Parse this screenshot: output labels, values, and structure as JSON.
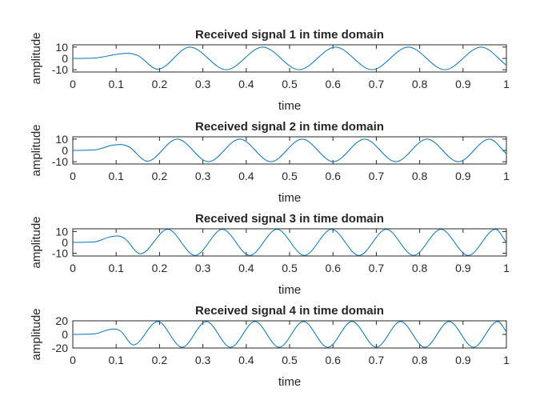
{
  "chart_data": [
    {
      "type": "line",
      "title": "Received signal 1 in time domain",
      "xlabel": "time",
      "ylabel": "amplitude",
      "xlim": [
        0,
        1
      ],
      "ylim": [
        -12,
        12
      ],
      "xticks": [
        "0",
        "0.1",
        "0.2",
        "0.3",
        "0.4",
        "0.5",
        "0.6",
        "0.7",
        "0.8",
        "0.9",
        "1"
      ],
      "yticks": [
        "10",
        "0",
        "-10"
      ],
      "grid": false,
      "color": "#0072BD",
      "series": [
        {
          "x": [
            0,
            0.05,
            0.1,
            0.125,
            0.15,
            0.196,
            0.27,
            0.354,
            0.438,
            0.522,
            0.606,
            0.69,
            0.774,
            0.858,
            0.942,
            1.0
          ],
          "y": [
            0,
            0.3,
            3.5,
            4.5,
            2.5,
            -9.5,
            10,
            -10,
            10,
            -10,
            10,
            -10,
            10,
            -10,
            10,
            -6
          ]
        }
      ]
    },
    {
      "type": "line",
      "title": "Received signal 2 in time domain",
      "xlabel": "time",
      "ylabel": "amplitude",
      "xlim": [
        0,
        1
      ],
      "ylim": [
        -12,
        12
      ],
      "xticks": [
        "0",
        "0.1",
        "0.2",
        "0.3",
        "0.4",
        "0.5",
        "0.6",
        "0.7",
        "0.8",
        "0.9",
        "1"
      ],
      "yticks": [
        "10",
        "0",
        "-10"
      ],
      "grid": false,
      "color": "#0072BD",
      "series": [
        {
          "x": [
            0,
            0.05,
            0.09,
            0.11,
            0.13,
            0.172,
            0.241,
            0.313,
            0.385,
            0.457,
            0.529,
            0.601,
            0.673,
            0.745,
            0.817,
            0.889,
            0.961,
            1.0
          ],
          "y": [
            0,
            0.4,
            4.5,
            5.2,
            3.0,
            -9.5,
            10,
            -10,
            10,
            -10,
            10,
            -10,
            10,
            -10,
            10,
            -10,
            10,
            -3
          ]
        }
      ]
    },
    {
      "type": "line",
      "title": "Received signal 3 in time domain",
      "xlabel": "time",
      "ylabel": "amplitude",
      "xlim": [
        0,
        1
      ],
      "ylim": [
        -12.5,
        12.5
      ],
      "xticks": [
        "0",
        "0.1",
        "0.2",
        "0.3",
        "0.4",
        "0.5",
        "0.6",
        "0.7",
        "0.8",
        "0.9",
        "1"
      ],
      "yticks": [
        "10",
        "0",
        "-10"
      ],
      "grid": false,
      "color": "#0072BD",
      "series": [
        {
          "x": [
            0,
            0.05,
            0.085,
            0.103,
            0.12,
            0.156,
            0.219,
            0.282,
            0.345,
            0.408,
            0.471,
            0.534,
            0.597,
            0.66,
            0.723,
            0.786,
            0.849,
            0.912,
            0.975,
            1.0
          ],
          "y": [
            0,
            0.5,
            5.0,
            6.0,
            3.5,
            -10.5,
            12,
            -12,
            12,
            -12,
            12,
            -12,
            12,
            -12,
            12,
            -12,
            12,
            -12,
            12,
            0
          ]
        }
      ]
    },
    {
      "type": "line",
      "title": "Received signal 4 in time domain",
      "xlabel": "time",
      "ylabel": "amplitude",
      "xlim": [
        0,
        1
      ],
      "ylim": [
        -20,
        20
      ],
      "xticks": [
        "0",
        "0.1",
        "0.2",
        "0.3",
        "0.4",
        "0.5",
        "0.6",
        "0.7",
        "0.8",
        "0.9",
        "1"
      ],
      "yticks": [
        "20",
        "0",
        "-20"
      ],
      "grid": false,
      "color": "#0072BD",
      "series": [
        {
          "x": [
            0,
            0.05,
            0.08,
            0.095,
            0.11,
            0.14,
            0.196,
            0.252,
            0.308,
            0.364,
            0.42,
            0.476,
            0.532,
            0.588,
            0.644,
            0.7,
            0.756,
            0.812,
            0.868,
            0.924,
            0.98,
            1.0
          ],
          "y": [
            0,
            0.8,
            6.5,
            8.0,
            5.0,
            -15.5,
            19,
            -19,
            19,
            -19,
            19,
            -19,
            19,
            -19,
            19,
            -19,
            19,
            -19,
            19,
            -19,
            19,
            4
          ]
        }
      ]
    }
  ]
}
